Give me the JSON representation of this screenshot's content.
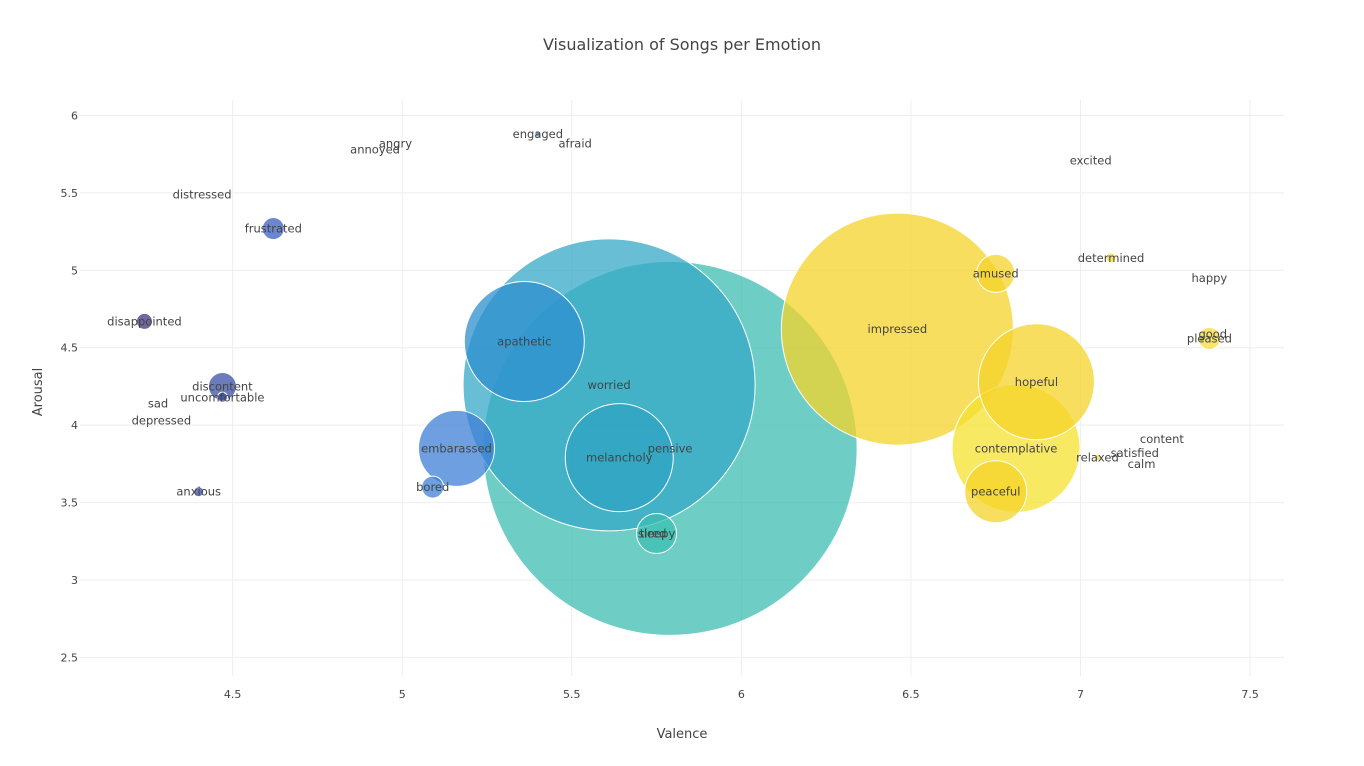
{
  "chart_data": {
    "type": "scatter",
    "title": "Visualization of Songs per Emotion",
    "xlabel": "Valence",
    "ylabel": "Arousal",
    "xlim": [
      4.05,
      7.6
    ],
    "ylim": [
      2.38,
      6.1
    ],
    "xticks": [
      4.5,
      5,
      5.5,
      6,
      6.5,
      7,
      7.5
    ],
    "yticks": [
      2.5,
      3,
      3.5,
      4,
      4.5,
      5,
      5.5,
      6
    ],
    "tick_labels_x": [
      "4.5",
      "5",
      "5.5",
      "6",
      "6.5",
      "7",
      "7.5"
    ],
    "tick_labels_y": [
      "2.5",
      "3",
      "3.5",
      "4",
      "4.5",
      "5",
      "5.5",
      "6"
    ],
    "grid": true,
    "legend": "none",
    "bubble_size_note": "relative song count",
    "points": [
      {
        "label": "angry",
        "x": 4.98,
        "y": 5.82,
        "size": 0,
        "color": "#46337e"
      },
      {
        "label": "annoyed",
        "x": 4.92,
        "y": 5.78,
        "size": 0,
        "color": "#46337e"
      },
      {
        "label": "engaged",
        "x": 5.4,
        "y": 5.88,
        "size": 3,
        "color": "#3b8bc2"
      },
      {
        "label": "afraid",
        "x": 5.51,
        "y": 5.82,
        "size": 0,
        "color": "#3b8bc2"
      },
      {
        "label": "excited",
        "x": 7.03,
        "y": 5.71,
        "size": 0,
        "color": "#f5dc3a"
      },
      {
        "label": "distressed",
        "x": 4.41,
        "y": 5.49,
        "size": 0,
        "color": "#46337e"
      },
      {
        "label": "frustrated",
        "x": 4.62,
        "y": 5.27,
        "size": 11,
        "color": "#3c5ec0"
      },
      {
        "label": "determined",
        "x": 7.09,
        "y": 5.08,
        "size": 5,
        "color": "#f5dc3a"
      },
      {
        "label": "happy",
        "x": 7.38,
        "y": 4.95,
        "size": 0,
        "color": "#f5dc3a"
      },
      {
        "label": "amused",
        "x": 6.75,
        "y": 4.98,
        "size": 19,
        "color": "#f5d32a"
      },
      {
        "label": "disappointed",
        "x": 4.24,
        "y": 4.67,
        "size": 8,
        "color": "#46337e"
      },
      {
        "label": "impressed",
        "x": 6.46,
        "y": 4.62,
        "size": 116,
        "color": "#f5d32a"
      },
      {
        "label": "good",
        "x": 7.39,
        "y": 4.59,
        "size": 0,
        "color": "#f5dc3a"
      },
      {
        "label": "pleased",
        "x": 7.38,
        "y": 4.56,
        "size": 11,
        "color": "#f5dc3a"
      },
      {
        "label": "apathetic",
        "x": 5.36,
        "y": 4.54,
        "size": 60,
        "color": "#2c8fcf"
      },
      {
        "label": "hopeful",
        "x": 6.87,
        "y": 4.28,
        "size": 58,
        "color": "#f5d32a"
      },
      {
        "label": "worried",
        "x": 5.61,
        "y": 4.26,
        "size": 146,
        "color": "#35a8c6"
      },
      {
        "label": "discontent",
        "x": 4.47,
        "y": 4.25,
        "size": 14,
        "color": "#3a4fa6"
      },
      {
        "label": "uncomfortable",
        "x": 4.47,
        "y": 4.18,
        "size": 5,
        "color": "#3a4fa6"
      },
      {
        "label": "sad",
        "x": 4.28,
        "y": 4.14,
        "size": 0,
        "color": "#46337e"
      },
      {
        "label": "depressed",
        "x": 4.29,
        "y": 4.03,
        "size": 0,
        "color": "#46337e"
      },
      {
        "label": "content",
        "x": 7.24,
        "y": 3.91,
        "size": 0,
        "color": "#f5dc3a"
      },
      {
        "label": "embarassed",
        "x": 5.16,
        "y": 3.85,
        "size": 38,
        "color": "#3d7fd6"
      },
      {
        "label": "pensive",
        "x": 5.79,
        "y": 3.85,
        "size": 187,
        "color": "#3dbdb1"
      },
      {
        "label": "contemplative",
        "x": 6.81,
        "y": 3.85,
        "size": 64,
        "color": "#f5e12e"
      },
      {
        "label": "melancholy",
        "x": 5.64,
        "y": 3.79,
        "size": 54,
        "color": "#2ea3c1"
      },
      {
        "label": "relaxed",
        "x": 7.05,
        "y": 3.79,
        "size": 3,
        "color": "#f5dc3a"
      },
      {
        "label": "satisfied",
        "x": 7.16,
        "y": 3.82,
        "size": 0,
        "color": "#f5dc3a"
      },
      {
        "label": "calm",
        "x": 7.18,
        "y": 3.75,
        "size": 0,
        "color": "#f5dc3a"
      },
      {
        "label": "bored",
        "x": 5.09,
        "y": 3.6,
        "size": 11,
        "color": "#3d7fd6"
      },
      {
        "label": "anxious",
        "x": 4.4,
        "y": 3.57,
        "size": 5,
        "color": "#3a4fa6"
      },
      {
        "label": "peaceful",
        "x": 6.75,
        "y": 3.57,
        "size": 31,
        "color": "#f5d32a"
      },
      {
        "label": "tired",
        "x": 5.74,
        "y": 3.3,
        "size": 0,
        "color": "#3dbdb1"
      },
      {
        "label": "sleepy",
        "x": 5.75,
        "y": 3.3,
        "size": 20,
        "color": "#3dbdb1"
      }
    ]
  }
}
